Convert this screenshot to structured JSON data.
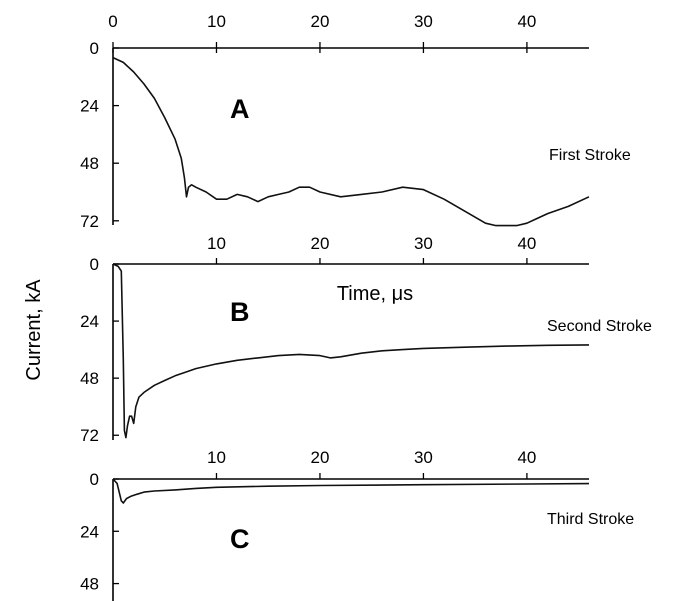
{
  "chart_data": {
    "type": "line",
    "xlabel": "Time, μs",
    "ylabel": "Current, kA",
    "xlim": [
      0,
      46
    ],
    "x_ticks": [
      0,
      10,
      20,
      30,
      40
    ],
    "grid": false,
    "panels": [
      {
        "letter": "A",
        "series_name": "First Stroke",
        "ylim": [
          0,
          80
        ],
        "y_ticks": [
          0,
          24,
          48,
          72
        ],
        "x_ticks": [
          0,
          10,
          20,
          30,
          40
        ],
        "x": [
          0,
          1,
          2,
          3,
          4,
          5,
          6,
          6.6,
          6.9,
          7.1,
          7.3,
          7.6,
          8,
          9,
          10,
          11,
          12,
          13,
          14,
          15,
          16,
          17,
          18,
          19,
          20,
          22,
          24,
          26,
          28,
          30,
          32,
          34,
          36,
          37,
          38,
          39,
          40,
          41,
          42,
          44,
          46
        ],
        "values": [
          4,
          6,
          10,
          15,
          21,
          29,
          38,
          46,
          54,
          62,
          58,
          57,
          58,
          60,
          63,
          63,
          61,
          62,
          64,
          62,
          61,
          60,
          58,
          58,
          60,
          62,
          61,
          60,
          58,
          59,
          63,
          68,
          73,
          74,
          74,
          74,
          73,
          71,
          69,
          66,
          62
        ]
      },
      {
        "letter": "B",
        "series_name": "Second Stroke",
        "ylim": [
          0,
          74
        ],
        "y_ticks": [
          0,
          24,
          48,
          72
        ],
        "x_ticks": [
          10,
          20,
          30,
          40
        ],
        "x": [
          0,
          0.5,
          0.8,
          1.0,
          1.1,
          1.25,
          1.4,
          1.6,
          1.8,
          2.0,
          2.2,
          2.5,
          3,
          4,
          5,
          6,
          7,
          8,
          10,
          12,
          14,
          16,
          18,
          20,
          21,
          22,
          24,
          26,
          28,
          30,
          34,
          38,
          42,
          46
        ],
        "values": [
          0,
          1,
          3,
          40,
          70,
          73,
          68,
          64,
          64,
          67,
          60,
          56,
          54,
          51,
          49,
          47,
          45.5,
          44,
          42,
          40.5,
          39.5,
          38.5,
          38,
          38.5,
          39.5,
          39,
          37.5,
          36.5,
          36,
          35.5,
          35,
          34.5,
          34.2,
          34
        ]
      },
      {
        "letter": "C",
        "series_name": "Third Stroke",
        "ylim": [
          0,
          56
        ],
        "y_ticks": [
          0,
          24,
          48
        ],
        "x_ticks": [
          10,
          20,
          30,
          40
        ],
        "x": [
          0,
          0.4,
          0.8,
          1.0,
          1.3,
          1.7,
          2.3,
          3,
          4,
          6,
          8,
          10,
          15,
          20,
          30,
          40,
          46
        ],
        "values": [
          0,
          2,
          10,
          11,
          9,
          8,
          7,
          6,
          5.5,
          5,
          4.3,
          3.8,
          3.3,
          3,
          2.6,
          2.3,
          2.1
        ]
      }
    ]
  }
}
